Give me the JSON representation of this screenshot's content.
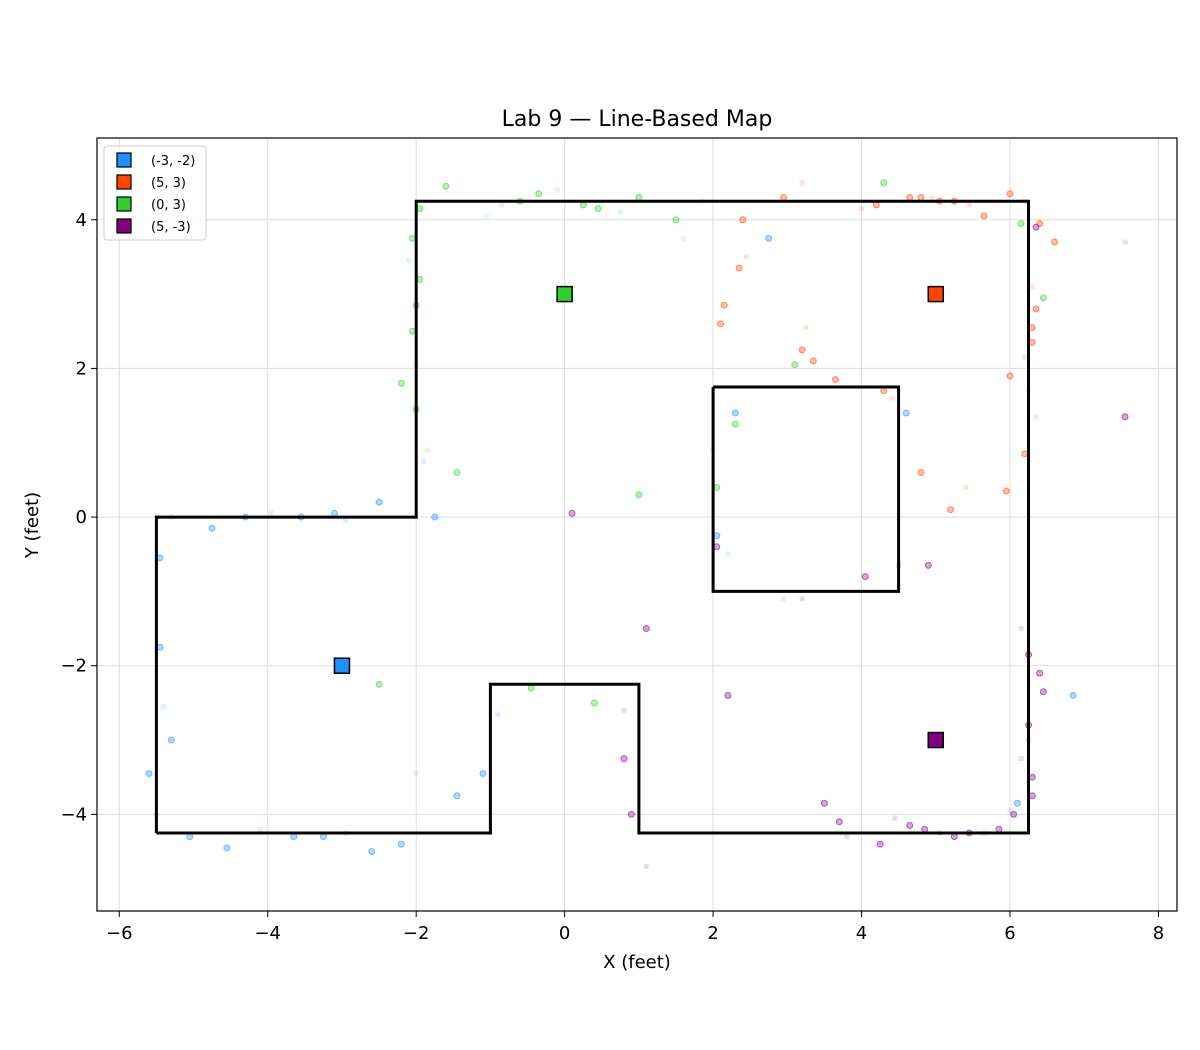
{
  "chart_data": {
    "type": "scatter",
    "title": "Lab 9 — Line-Based Map",
    "xlabel": "X (feet)",
    "ylabel": "Y (feet)",
    "xlim": [
      -6.3,
      8.25
    ],
    "ylim": [
      -5.3,
      5.1
    ],
    "x_ticks": [
      -6,
      -4,
      -2,
      0,
      2,
      4,
      6,
      8
    ],
    "y_ticks": [
      -4,
      -2,
      0,
      2,
      4
    ],
    "x_tick_labels": [
      "−6",
      "−4",
      "−2",
      "0",
      "2",
      "4",
      "6",
      "8"
    ],
    "y_tick_labels": [
      "−4",
      "−2",
      "0",
      "2",
      "4"
    ],
    "grid": true,
    "legend_position": "top-left",
    "map_walls": [
      [
        [
          -5.5,
          -4.25
        ],
        [
          -5.5,
          0.0
        ],
        [
          -2.0,
          0.0
        ],
        [
          -2.0,
          4.25
        ],
        [
          6.25,
          4.25
        ],
        [
          6.25,
          -4.25
        ],
        [
          1.0,
          -4.25
        ],
        [
          1.0,
          -2.25
        ],
        [
          -1.0,
          -2.25
        ],
        [
          -1.0,
          -4.25
        ],
        [
          -5.5,
          -4.25
        ]
      ],
      [
        [
          2.0,
          1.75
        ],
        [
          4.5,
          1.75
        ],
        [
          4.5,
          -1.0
        ],
        [
          2.0,
          -1.0
        ],
        [
          2.0,
          1.75
        ]
      ]
    ],
    "series": [
      {
        "name": "(-3, -2)",
        "pose": [
          -3,
          -2
        ],
        "color": "#1e90ff",
        "points": [
          [
            -5.45,
            -0.55
          ],
          [
            -5.45,
            -1.75
          ],
          [
            -5.4,
            -2.55
          ],
          [
            -5.3,
            -3.0
          ],
          [
            -5.6,
            -3.45
          ],
          [
            -5.5,
            -4.0
          ],
          [
            -5.05,
            -4.3
          ],
          [
            -4.55,
            -4.45
          ],
          [
            -4.1,
            -4.2
          ],
          [
            -3.65,
            -4.3
          ],
          [
            -3.25,
            -4.3
          ],
          [
            -2.95,
            -4.25
          ],
          [
            -2.6,
            -4.5
          ],
          [
            -2.2,
            -4.4
          ],
          [
            -5.3,
            0.0
          ],
          [
            -4.75,
            -0.15
          ],
          [
            -4.3,
            0.0
          ],
          [
            -3.95,
            0.05
          ],
          [
            -3.55,
            0.0
          ],
          [
            -3.1,
            0.05
          ],
          [
            -2.95,
            -0.05
          ],
          [
            -2.5,
            0.2
          ],
          [
            -1.75,
            0.0
          ],
          [
            -1.9,
            0.75
          ],
          [
            -1.45,
            -3.75
          ],
          [
            -1.1,
            -3.45
          ],
          [
            -0.9,
            -2.65
          ],
          [
            2.05,
            -0.25
          ],
          [
            2.3,
            1.4
          ],
          [
            2.95,
            -1.1
          ],
          [
            2.75,
            3.75
          ],
          [
            4.6,
            1.4
          ],
          [
            6.0,
            -3.95
          ],
          [
            6.1,
            -3.85
          ],
          [
            6.85,
            -2.4
          ],
          [
            1.85,
            4.25
          ]
        ]
      },
      {
        "name": "(5, 3)",
        "pose": [
          5,
          3
        ],
        "color": "#ff4500",
        "points": [
          [
            2.4,
            4.0
          ],
          [
            2.35,
            3.35
          ],
          [
            2.45,
            3.5
          ],
          [
            2.15,
            2.85
          ],
          [
            2.1,
            2.6
          ],
          [
            3.2,
            4.5
          ],
          [
            2.95,
            4.3
          ],
          [
            3.35,
            2.1
          ],
          [
            3.25,
            2.55
          ],
          [
            3.2,
            2.25
          ],
          [
            3.65,
            1.85
          ],
          [
            4.0,
            4.15
          ],
          [
            4.2,
            4.2
          ],
          [
            4.3,
            1.7
          ],
          [
            4.4,
            1.6
          ],
          [
            4.65,
            4.3
          ],
          [
            4.8,
            4.3
          ],
          [
            4.95,
            4.3
          ],
          [
            5.05,
            4.25
          ],
          [
            5.25,
            4.25
          ],
          [
            5.45,
            4.2
          ],
          [
            5.65,
            4.05
          ],
          [
            6.0,
            4.35
          ],
          [
            6.2,
            4.25
          ],
          [
            6.4,
            3.95
          ],
          [
            6.6,
            3.7
          ],
          [
            6.3,
            3.1
          ],
          [
            6.35,
            2.8
          ],
          [
            6.3,
            2.55
          ],
          [
            6.2,
            2.15
          ],
          [
            6.3,
            2.35
          ],
          [
            6.0,
            1.9
          ],
          [
            6.35,
            1.35
          ],
          [
            6.2,
            0.85
          ],
          [
            5.95,
            0.35
          ],
          [
            5.4,
            0.4
          ],
          [
            5.2,
            0.1
          ],
          [
            4.8,
            0.6
          ]
        ]
      },
      {
        "name": "(0, 3)",
        "pose": [
          0,
          3
        ],
        "color": "#32cd32",
        "points": [
          [
            -1.6,
            4.45
          ],
          [
            -1.95,
            4.15
          ],
          [
            -0.85,
            4.2
          ],
          [
            -0.6,
            4.25
          ],
          [
            -0.35,
            4.35
          ],
          [
            -0.1,
            4.4
          ],
          [
            0.25,
            4.2
          ],
          [
            0.45,
            4.15
          ],
          [
            0.75,
            4.1
          ],
          [
            1.0,
            4.3
          ],
          [
            1.5,
            4.0
          ],
          [
            1.6,
            3.75
          ],
          [
            -2.05,
            3.75
          ],
          [
            -1.95,
            3.2
          ],
          [
            -2.1,
            3.45
          ],
          [
            -2.0,
            2.85
          ],
          [
            -2.05,
            2.5
          ],
          [
            -2.0,
            2.05
          ],
          [
            -2.2,
            1.8
          ],
          [
            -2.0,
            1.45
          ],
          [
            -1.85,
            0.9
          ],
          [
            -1.45,
            0.6
          ],
          [
            1.0,
            0.3
          ],
          [
            2.0,
            0.9
          ],
          [
            2.05,
            0.4
          ],
          [
            2.3,
            1.25
          ],
          [
            2.2,
            -0.5
          ],
          [
            3.1,
            2.05
          ],
          [
            -2.5,
            -2.25
          ],
          [
            -2.0,
            -3.45
          ],
          [
            -0.45,
            -2.3
          ],
          [
            0.4,
            -2.5
          ],
          [
            6.25,
            1.7
          ],
          [
            6.45,
            2.95
          ],
          [
            6.15,
            3.95
          ],
          [
            -1.05,
            4.05
          ],
          [
            4.3,
            4.5
          ]
        ]
      },
      {
        "name": "(5, -3)",
        "pose": [
          5,
          -3
        ],
        "color": "#800080",
        "points": [
          [
            0.1,
            0.05
          ],
          [
            1.1,
            -1.5
          ],
          [
            0.8,
            -2.6
          ],
          [
            0.8,
            -3.25
          ],
          [
            0.9,
            -4.0
          ],
          [
            1.1,
            -4.7
          ],
          [
            2.05,
            -0.4
          ],
          [
            2.2,
            -2.4
          ],
          [
            3.2,
            -1.1
          ],
          [
            3.5,
            -3.85
          ],
          [
            3.7,
            -4.1
          ],
          [
            3.8,
            -4.3
          ],
          [
            4.05,
            -0.8
          ],
          [
            4.25,
            -4.4
          ],
          [
            4.45,
            -4.05
          ],
          [
            4.65,
            -4.15
          ],
          [
            4.85,
            -4.2
          ],
          [
            5.05,
            -4.25
          ],
          [
            5.25,
            -4.3
          ],
          [
            5.45,
            -4.25
          ],
          [
            5.65,
            -4.25
          ],
          [
            5.85,
            -4.2
          ],
          [
            6.05,
            -4.0
          ],
          [
            6.15,
            -3.25
          ],
          [
            6.3,
            -3.5
          ],
          [
            6.3,
            -3.75
          ],
          [
            6.25,
            -3.0
          ],
          [
            6.25,
            -2.8
          ],
          [
            6.25,
            -1.85
          ],
          [
            6.15,
            -1.5
          ],
          [
            6.4,
            -2.1
          ],
          [
            6.45,
            -2.35
          ],
          [
            4.5,
            -0.65
          ],
          [
            4.9,
            -0.65
          ],
          [
            6.35,
            3.9
          ],
          [
            7.55,
            3.7
          ],
          [
            7.55,
            1.35
          ]
        ]
      }
    ]
  }
}
